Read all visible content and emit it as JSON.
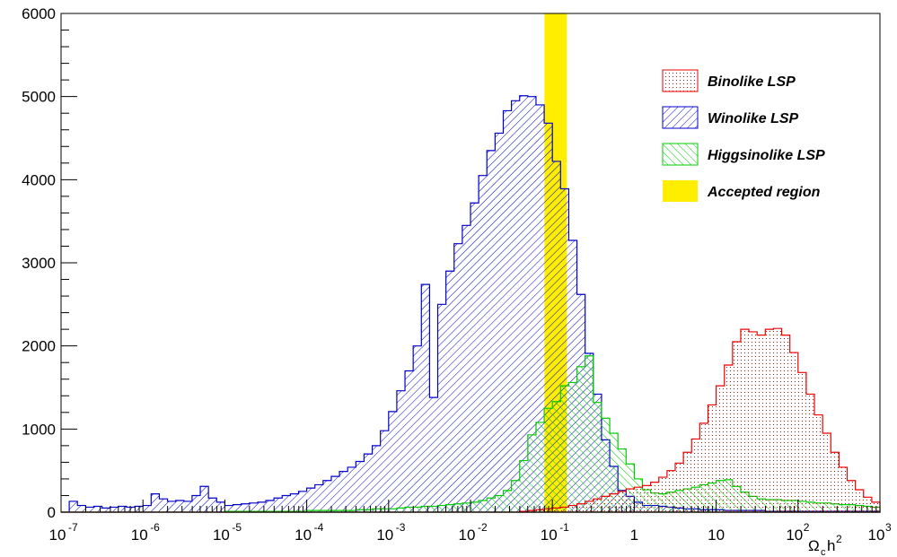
{
  "chart_data": {
    "type": "histogram",
    "title": "",
    "xlabel": "Ω_ch²",
    "xlabel_parts": {
      "base": "Ω",
      "sub": "c",
      "mid": "h",
      "sup": "2"
    },
    "ylabel": "",
    "x_scale": "log",
    "xlim": [
      1e-07,
      1000
    ],
    "ylim": [
      0,
      6000
    ],
    "grid": false,
    "legend_position": "top-right",
    "x_tick_labels": [
      {
        "v": 1e-07,
        "base": "10",
        "exp": "-7"
      },
      {
        "v": 1e-06,
        "base": "10",
        "exp": "-6"
      },
      {
        "v": 1e-05,
        "base": "10",
        "exp": "-5"
      },
      {
        "v": 0.0001,
        "base": "10",
        "exp": "-4"
      },
      {
        "v": 0.001,
        "base": "10",
        "exp": "-3"
      },
      {
        "v": 0.01,
        "base": "10",
        "exp": "-2"
      },
      {
        "v": 0.1,
        "base": "10",
        "exp": "-1"
      },
      {
        "v": 1,
        "base": "1",
        "exp": ""
      },
      {
        "v": 10,
        "base": "10",
        "exp": ""
      },
      {
        "v": 100,
        "base": "10",
        "exp": "2"
      },
      {
        "v": 1000,
        "base": "10",
        "exp": "3"
      }
    ],
    "y_ticks": [
      0,
      1000,
      2000,
      3000,
      4000,
      5000,
      6000
    ],
    "y_tick_labels": [
      "0",
      "1000",
      "2000",
      "3000",
      "4000",
      "5000",
      "6000"
    ],
    "bin_edges_log10": {
      "start": -7,
      "end": 3,
      "bins": 100
    },
    "series": [
      {
        "name": "Winolike LSP",
        "color": "#0000cc",
        "fill": "hatch-diagonal",
        "values": [
          0,
          130,
          80,
          60,
          70,
          50,
          60,
          70,
          60,
          70,
          0,
          0,
          0,
          0,
          0,
          0,
          0,
          0,
          0,
          0,
          0,
          0,
          0,
          0,
          0,
          0,
          0,
          0,
          0,
          0,
          0,
          0,
          0,
          0,
          0,
          0,
          0,
          0,
          0,
          0,
          0,
          0,
          0,
          0,
          0,
          0,
          0,
          0,
          0,
          0,
          0,
          0,
          0,
          0,
          0,
          0,
          0,
          0,
          0,
          0,
          0,
          0,
          0,
          0,
          0,
          0,
          0,
          0,
          0,
          0,
          0,
          0,
          0,
          0,
          0,
          0,
          0,
          0,
          0,
          0,
          0,
          0,
          0,
          0,
          0,
          0,
          0,
          0,
          0,
          0,
          0,
          0,
          0,
          0,
          0,
          0,
          0,
          0,
          0,
          0
        ],
        "values_full": [
          0,
          130,
          80,
          60,
          70,
          50,
          60,
          70,
          60,
          70,
          80,
          220,
          160,
          130,
          140,
          130,
          200,
          310,
          170,
          120,
          80,
          90,
          100,
          110,
          120,
          140,
          170,
          200,
          220,
          250,
          290,
          330,
          380,
          430,
          490,
          540,
          610,
          700,
          800,
          980,
          1210,
          1460,
          1700,
          2000,
          2740,
          1380,
          2500,
          2900,
          3230,
          3450,
          3720,
          4050,
          4350,
          4560,
          4830,
          4950,
          5010,
          5000,
          4900,
          4680,
          4220,
          3890,
          3270,
          2620,
          1910,
          1420,
          870,
          550,
          260,
          190,
          120,
          80,
          80,
          70,
          60,
          50,
          40,
          40,
          30,
          30,
          30,
          20,
          20,
          20,
          20,
          20,
          10,
          10,
          10,
          10,
          10,
          10,
          10,
          10,
          10,
          10,
          10,
          10,
          10,
          10
        ]
      },
      {
        "name": "Higgsinolike LSP",
        "color": "#00cc00",
        "fill": "hatch-antidiagonal",
        "values": [
          0,
          0,
          0,
          0,
          0,
          0,
          0,
          0,
          0,
          0,
          0,
          0,
          0,
          0,
          0,
          0,
          0,
          0,
          0,
          0,
          10,
          10,
          10,
          10,
          10,
          10,
          10,
          10,
          10,
          10,
          20,
          20,
          20,
          20,
          20,
          20,
          30,
          30,
          40,
          40,
          40,
          50,
          60,
          60,
          70,
          70,
          80,
          90,
          100,
          110,
          120,
          140,
          170,
          200,
          260,
          380,
          620,
          930,
          1080,
          1250,
          1330,
          1520,
          1560,
          1750,
          1880,
          1320,
          1130,
          950,
          760,
          580,
          400,
          270,
          230,
          220,
          240,
          260,
          280,
          300,
          330,
          350,
          380,
          390,
          310,
          240,
          190,
          160,
          150,
          150,
          140,
          140,
          130,
          120,
          110,
          110,
          100,
          90,
          90,
          80,
          70,
          60
        ]
      },
      {
        "name": "Binolike LSP",
        "color": "#ee0000",
        "fill": "dots",
        "values": [
          0,
          0,
          0,
          0,
          0,
          0,
          0,
          0,
          0,
          0,
          0,
          0,
          0,
          0,
          0,
          0,
          0,
          0,
          0,
          0,
          0,
          0,
          0,
          0,
          0,
          0,
          0,
          0,
          0,
          0,
          0,
          0,
          0,
          0,
          0,
          0,
          0,
          0,
          0,
          0,
          0,
          0,
          0,
          0,
          0,
          0,
          0,
          0,
          0,
          0,
          0,
          0,
          0,
          0,
          0,
          0,
          10,
          20,
          30,
          40,
          50,
          60,
          80,
          100,
          130,
          160,
          190,
          220,
          250,
          280,
          300,
          320,
          360,
          420,
          500,
          590,
          720,
          880,
          1070,
          1290,
          1520,
          1770,
          2050,
          2200,
          2170,
          2130,
          2200,
          2210,
          2130,
          1920,
          1680,
          1420,
          1170,
          950,
          720,
          540,
          380,
          270,
          180,
          120
        ]
      }
    ],
    "accepted_region": {
      "name": "Accepted region",
      "color": "#ffee00",
      "x_range": [
        0.08,
        0.15
      ]
    },
    "legend": [
      {
        "name": "Binolike LSP",
        "style": "dots",
        "color": "#ee0000"
      },
      {
        "name": "Winolike LSP",
        "style": "hatch-diagonal",
        "color": "#0000cc"
      },
      {
        "name": "Higgsinolike LSP",
        "style": "hatch-antidiagonal",
        "color": "#00cc00"
      },
      {
        "name": "Accepted region",
        "style": "solid",
        "color": "#ffee00"
      }
    ]
  }
}
